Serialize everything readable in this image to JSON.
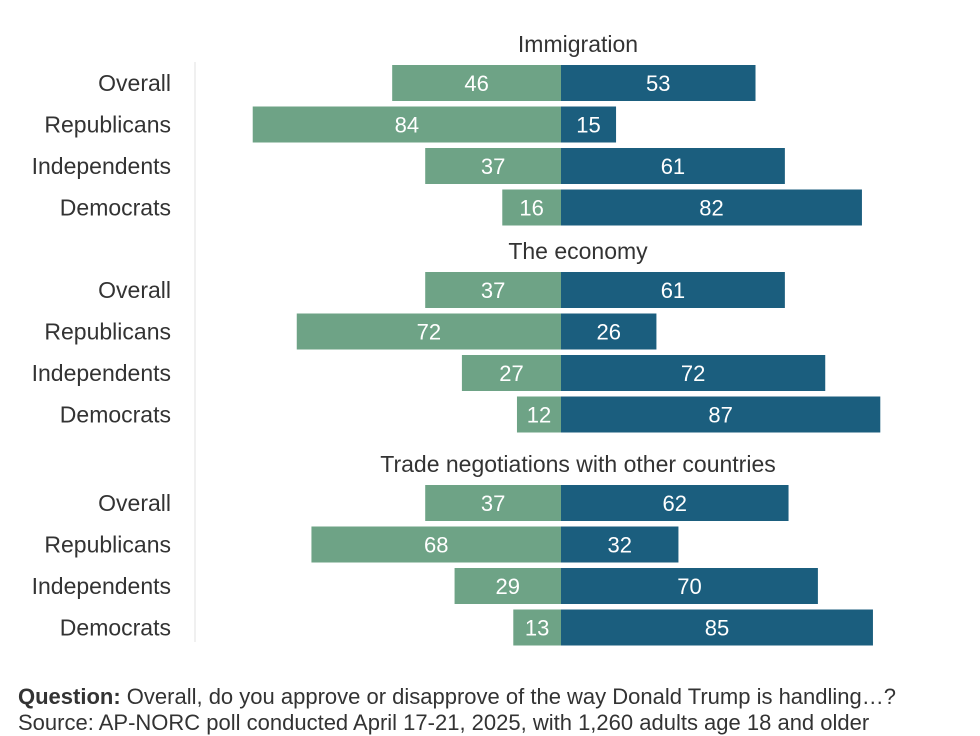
{
  "colors": {
    "disapprove": "#6ea386",
    "approve": "#1b5e7e"
  },
  "chart_data": {
    "type": "bar",
    "orientation": "horizontal-diverging",
    "xlim": [
      -100,
      100
    ],
    "categories": [
      "Overall",
      "Republicans",
      "Independents",
      "Democrats"
    ],
    "panels": [
      {
        "title": "Immigration",
        "series": [
          {
            "values": [
              46,
              84,
              37,
              16
            ]
          },
          {
            "values": [
              53,
              15,
              61,
              82
            ]
          }
        ]
      },
      {
        "title": "The economy",
        "series": [
          {
            "values": [
              37,
              72,
              27,
              12
            ]
          },
          {
            "values": [
              61,
              26,
              72,
              87
            ]
          }
        ]
      },
      {
        "title": "Trade negotiations with other countries",
        "series": [
          {
            "values": [
              37,
              68,
              29,
              13
            ]
          },
          {
            "values": [
              62,
              32,
              70,
              85
            ]
          }
        ]
      }
    ]
  },
  "footer": {
    "question_label": "Question:",
    "question_text": " Overall, do you approve or disapprove of the way Donald Trump is handling…?",
    "source_text": "Source: AP-NORC poll conducted April 17-21, 2025, with 1,260 adults age 18 and older"
  }
}
